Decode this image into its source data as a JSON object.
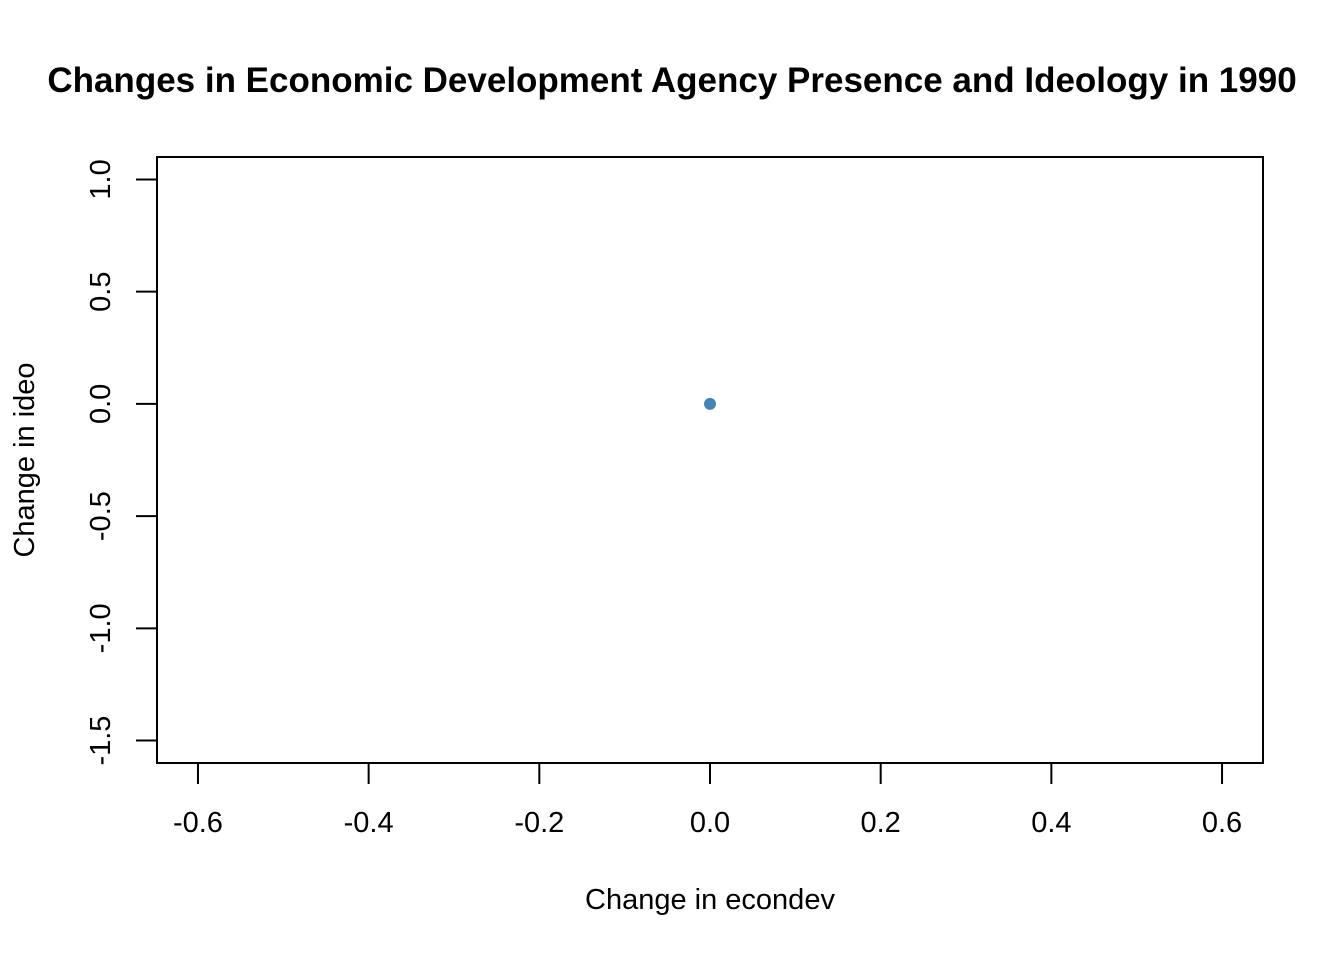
{
  "chart_data": {
    "type": "scatter",
    "title": "Changes in Economic Development Agency Presence and Ideology in 1990",
    "xlabel": "Change in econdev",
    "ylabel": "Change in ideo",
    "xlim": [
      -0.648,
      0.648
    ],
    "ylim": [
      -1.6,
      1.1
    ],
    "x_ticks": [
      -0.6,
      -0.4,
      -0.2,
      0.0,
      0.2,
      0.4,
      0.6
    ],
    "x_tick_labels": [
      "-0.6",
      "-0.4",
      "-0.2",
      "0.0",
      "0.2",
      "0.4",
      "0.6"
    ],
    "y_ticks": [
      -1.5,
      -1.0,
      -0.5,
      0.0,
      0.5,
      1.0
    ],
    "y_tick_labels": [
      "-1.5",
      "-1.0",
      "-0.5",
      "0.0",
      "0.5",
      "1.0"
    ],
    "grid": false,
    "point_color": "#4682B4",
    "points": [
      {
        "x": 0.0,
        "y": 0.0
      }
    ]
  }
}
